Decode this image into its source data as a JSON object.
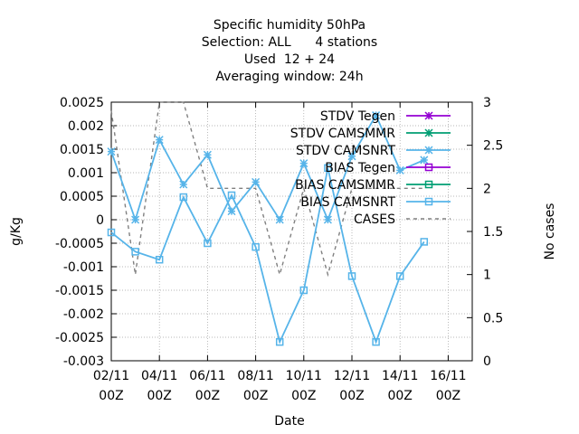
{
  "chart_data": {
    "type": "line",
    "title": [
      "Specific humidity 50hPa",
      "Selection: ALL      4 stations",
      "Used  12 + 24",
      "Averaging window: 24h"
    ],
    "xlabel": "Date",
    "ylabel": "g/Kg",
    "y2label": "No cases",
    "ylim": [
      -0.003,
      0.0025
    ],
    "y2lim": [
      0,
      3
    ],
    "xlim": [
      0,
      15
    ],
    "y_ticks": [
      "0.0025",
      "0.002",
      "0.0015",
      "0.001",
      "0.0005",
      "0",
      "-0.0005",
      "-0.001",
      "-0.0015",
      "-0.002",
      "-0.0025",
      "-0.003"
    ],
    "y_tick_values": [
      0.0025,
      0.002,
      0.0015,
      0.001,
      0.0005,
      0,
      -0.0005,
      -0.001,
      -0.0015,
      -0.002,
      -0.0025,
      -0.003
    ],
    "y2_ticks": [
      "3",
      "2.5",
      "2",
      "1.5",
      "1",
      "0.5",
      "0"
    ],
    "y2_tick_values": [
      3,
      2.5,
      2,
      1.5,
      1,
      0.5,
      0
    ],
    "x_ticks": [
      {
        "x": 0,
        "line1": "02/11",
        "line2": "00Z"
      },
      {
        "x": 2,
        "line1": "04/11",
        "line2": "00Z"
      },
      {
        "x": 4,
        "line1": "06/11",
        "line2": "00Z"
      },
      {
        "x": 6,
        "line1": "08/11",
        "line2": "00Z"
      },
      {
        "x": 8,
        "line1": "10/11",
        "line2": "00Z"
      },
      {
        "x": 10,
        "line1": "12/11",
        "line2": "00Z"
      },
      {
        "x": 12,
        "line1": "14/11",
        "line2": "00Z"
      },
      {
        "x": 14,
        "line1": "16/11",
        "line2": "00Z"
      }
    ],
    "grid": true,
    "legend_position": "top-right",
    "series": [
      {
        "name": "STDV Tegen",
        "color": "#9400d3",
        "marker": "x-star",
        "axis": "y",
        "x": [],
        "values": []
      },
      {
        "name": "STDV CAMSMMR",
        "color": "#009e73",
        "marker": "x-star",
        "axis": "y",
        "x": [],
        "values": []
      },
      {
        "name": "STDV CAMSNRT",
        "color": "#56b4e9",
        "marker": "x-star",
        "axis": "y",
        "x": [
          0,
          1,
          2,
          3,
          4,
          5,
          6,
          7,
          8,
          9,
          10,
          11,
          12,
          13
        ],
        "values": [
          0.00145,
          0.0,
          0.0017,
          0.00075,
          0.00138,
          0.00018,
          0.0008,
          0.0,
          0.0012,
          0.0,
          0.00135,
          0.00222,
          0.00105,
          0.00127
        ]
      },
      {
        "name": "BIAS Tegen",
        "color": "#9400d3",
        "marker": "square",
        "axis": "y",
        "x": [],
        "values": []
      },
      {
        "name": "BIAS CAMSMMR",
        "color": "#009e73",
        "marker": "square",
        "axis": "y",
        "x": [],
        "values": []
      },
      {
        "name": "BIAS CAMSNRT",
        "color": "#56b4e9",
        "marker": "square",
        "axis": "y",
        "x": [
          0,
          1,
          2,
          3,
          4,
          5,
          6,
          7,
          8,
          9,
          10,
          11,
          12,
          13
        ],
        "values": [
          -0.00027,
          -0.00068,
          -0.00085,
          0.00048,
          -0.0005,
          0.00052,
          -0.00058,
          -0.0026,
          -0.0015,
          0.0011,
          -0.0012,
          -0.0026,
          -0.0012,
          -0.00047
        ]
      },
      {
        "name": "CASES",
        "color": "#808080",
        "marker": "none",
        "dash": true,
        "axis": "y2",
        "x": [
          0,
          1,
          2,
          3,
          4,
          5,
          6,
          7,
          8,
          9,
          10,
          11,
          12,
          13
        ],
        "values": [
          2.9,
          1,
          3,
          3,
          2,
          2,
          2,
          1,
          2,
          1,
          2,
          2,
          2,
          2
        ]
      }
    ]
  }
}
